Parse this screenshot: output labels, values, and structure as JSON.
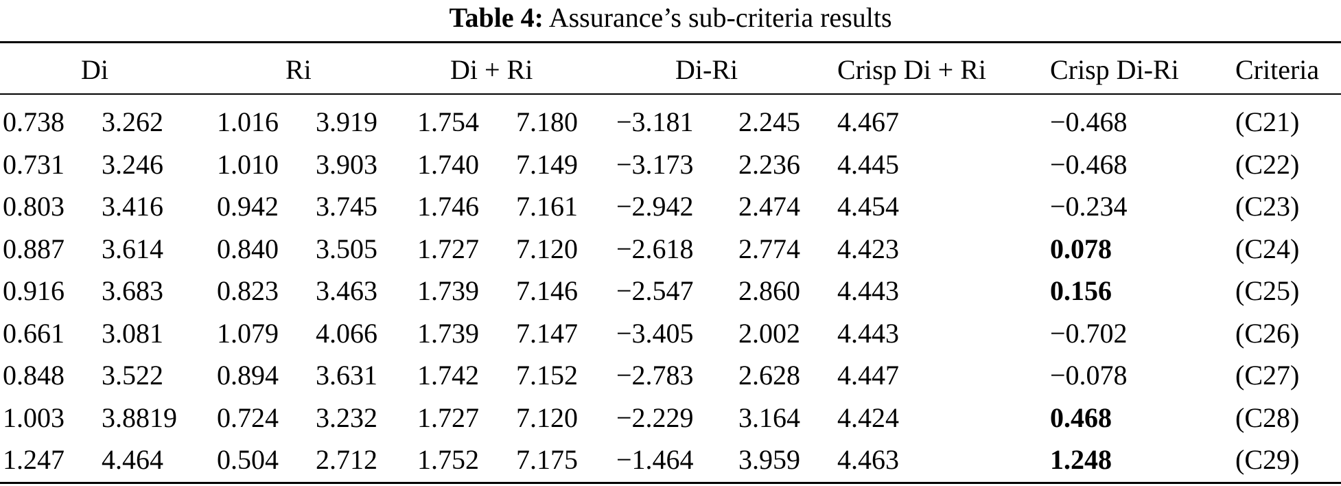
{
  "caption": {
    "label": "Table 4:",
    "text": "Assurance’s sub-criteria results"
  },
  "columns": [
    "Di",
    "Ri",
    "Di + Ri",
    "Di-Ri",
    "Crisp Di + Ri",
    "Crisp Di-Ri",
    "Criteria"
  ],
  "rows": [
    {
      "di": [
        "0.738",
        "3.262"
      ],
      "ri": [
        "1.016",
        "3.919"
      ],
      "dipri": [
        "1.754",
        "7.180"
      ],
      "dimri": [
        "−3.181",
        "2.245"
      ],
      "crisp_dipri": "4.467",
      "crisp_dimri": "−0.468",
      "crisp_dimri_bold": false,
      "criteria": "(C21)"
    },
    {
      "di": [
        "0.731",
        "3.246"
      ],
      "ri": [
        "1.010",
        "3.903"
      ],
      "dipri": [
        "1.740",
        "7.149"
      ],
      "dimri": [
        "−3.173",
        "2.236"
      ],
      "crisp_dipri": "4.445",
      "crisp_dimri": "−0.468",
      "crisp_dimri_bold": false,
      "criteria": "(C22)"
    },
    {
      "di": [
        "0.803",
        "3.416"
      ],
      "ri": [
        "0.942",
        "3.745"
      ],
      "dipri": [
        "1.746",
        "7.161"
      ],
      "dimri": [
        "−2.942",
        "2.474"
      ],
      "crisp_dipri": "4.454",
      "crisp_dimri": "−0.234",
      "crisp_dimri_bold": false,
      "criteria": "(C23)"
    },
    {
      "di": [
        "0.887",
        "3.614"
      ],
      "ri": [
        "0.840",
        "3.505"
      ],
      "dipri": [
        "1.727",
        "7.120"
      ],
      "dimri": [
        "−2.618",
        "2.774"
      ],
      "crisp_dipri": "4.423",
      "crisp_dimri": "0.078",
      "crisp_dimri_bold": true,
      "criteria": "(C24)"
    },
    {
      "di": [
        "0.916",
        "3.683"
      ],
      "ri": [
        "0.823",
        "3.463"
      ],
      "dipri": [
        "1.739",
        "7.146"
      ],
      "dimri": [
        "−2.547",
        "2.860"
      ],
      "crisp_dipri": "4.443",
      "crisp_dimri": "0.156",
      "crisp_dimri_bold": true,
      "criteria": "(C25)"
    },
    {
      "di": [
        "0.661",
        "3.081"
      ],
      "ri": [
        "1.079",
        "4.066"
      ],
      "dipri": [
        "1.739",
        "7.147"
      ],
      "dimri": [
        "−3.405",
        "2.002"
      ],
      "crisp_dipri": "4.443",
      "crisp_dimri": "−0.702",
      "crisp_dimri_bold": false,
      "criteria": "(C26)"
    },
    {
      "di": [
        "0.848",
        "3.522"
      ],
      "ri": [
        "0.894",
        "3.631"
      ],
      "dipri": [
        "1.742",
        "7.152"
      ],
      "dimri": [
        "−2.783",
        "2.628"
      ],
      "crisp_dipri": "4.447",
      "crisp_dimri": "−0.078",
      "crisp_dimri_bold": false,
      "criteria": "(C27)"
    },
    {
      "di": [
        "1.003",
        "3.8819"
      ],
      "ri": [
        "0.724",
        "3.232"
      ],
      "dipri": [
        "1.727",
        "7.120"
      ],
      "dimri": [
        "−2.229",
        "3.164"
      ],
      "crisp_dipri": "4.424",
      "crisp_dimri": "0.468",
      "crisp_dimri_bold": true,
      "criteria": "(C28)"
    },
    {
      "di": [
        "1.247",
        "4.464"
      ],
      "ri": [
        "0.504",
        "2.712"
      ],
      "dipri": [
        "1.752",
        "7.175"
      ],
      "dimri": [
        "−1.464",
        "3.959"
      ],
      "crisp_dipri": "4.463",
      "crisp_dimri": "1.248",
      "crisp_dimri_bold": true,
      "criteria": "(C29)"
    }
  ]
}
